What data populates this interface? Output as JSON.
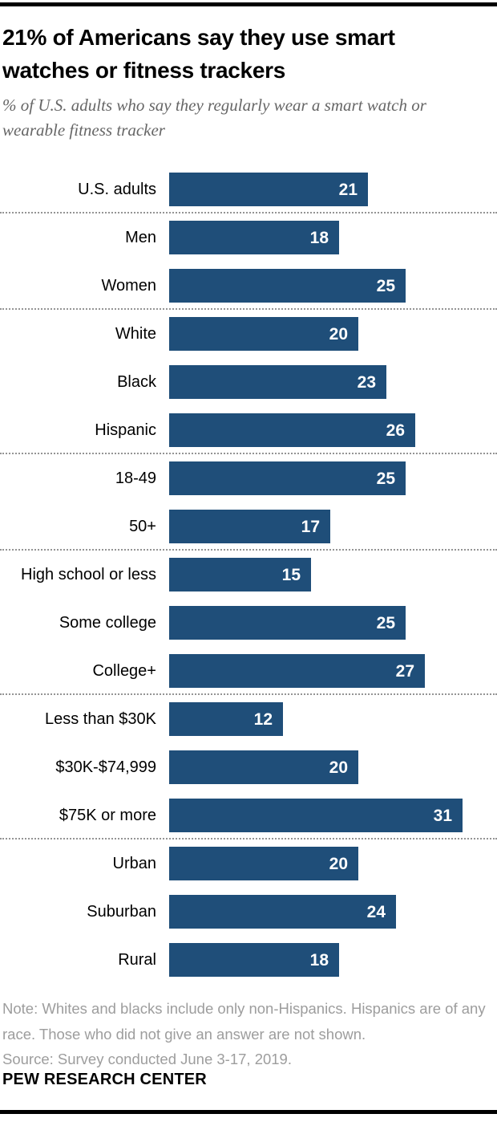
{
  "header": {
    "title": "21% of Americans say they use smart watches or fitness trackers",
    "subtitle": "% of U.S. adults who say they regularly wear a smart watch or wearable fitness tracker"
  },
  "chart_data": {
    "type": "bar",
    "orientation": "horizontal",
    "title": "21% of Americans say they use smart watches or fitness trackers",
    "subtitle": "% of U.S. adults who say they regularly wear a smart watch or wearable fitness tracker",
    "unit": "%",
    "xlim": [
      0,
      31
    ],
    "grid": false,
    "legend": false,
    "bar_color": "#1F4E79",
    "value_label_color": "#FFFFFF",
    "separator_color": "#949494",
    "categories": [
      "U.S. adults",
      "Men",
      "Women",
      "White",
      "Black",
      "Hispanic",
      "18-49",
      "50+",
      "High school or less",
      "Some college",
      "College+",
      "Less than $30K",
      "$30K-$74,999",
      "$75K or more",
      "Urban",
      "Suburban",
      "Rural"
    ],
    "values": [
      21,
      18,
      25,
      20,
      23,
      26,
      25,
      17,
      15,
      25,
      27,
      12,
      20,
      31,
      20,
      24,
      18
    ],
    "groups": [
      [
        {
          "label": "U.S. adults",
          "value": 21
        }
      ],
      [
        {
          "label": "Men",
          "value": 18
        },
        {
          "label": "Women",
          "value": 25
        }
      ],
      [
        {
          "label": "White",
          "value": 20
        },
        {
          "label": "Black",
          "value": 23
        },
        {
          "label": "Hispanic",
          "value": 26
        }
      ],
      [
        {
          "label": "18-49",
          "value": 25
        },
        {
          "label": "50+",
          "value": 17
        }
      ],
      [
        {
          "label": "High school or less",
          "value": 15
        },
        {
          "label": "Some college",
          "value": 25
        },
        {
          "label": "College+",
          "value": 27
        }
      ],
      [
        {
          "label": "Less than $30K",
          "value": 12
        },
        {
          "label": "$30K-$74,999",
          "value": 20
        },
        {
          "label": "$75K or more",
          "value": 31
        }
      ],
      [
        {
          "label": "Urban",
          "value": 20
        },
        {
          "label": "Suburban",
          "value": 24
        },
        {
          "label": "Rural",
          "value": 18
        }
      ]
    ]
  },
  "footer": {
    "note": "Note: Whites and blacks include only non-Hispanics. Hispanics are of any race. Those who did not give an answer are not shown.",
    "source": "Source: Survey conducted June 3-17, 2019.",
    "branding": "PEW RESEARCH CENTER"
  }
}
